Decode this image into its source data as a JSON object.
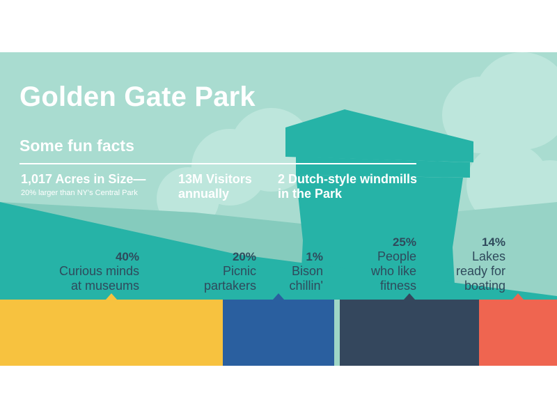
{
  "title": "Golden Gate Park",
  "subtitle": "Some fun facts",
  "facts": [
    {
      "headline": "1,017 Acres in Size—",
      "sub": "20% larger than NY's Central Park"
    },
    {
      "headline": "13M Visitors annually",
      "sub": ""
    },
    {
      "headline": "2 Dutch-style windmills in the Park",
      "sub": ""
    }
  ],
  "colors": {
    "sky": "#a9dcd0",
    "cloud": "#bde6dc",
    "hill": "#85cbbd",
    "teal": "#26b3a7",
    "text_dark": "#2f4a5c",
    "white": "#ffffff"
  },
  "chart_data": {
    "type": "bar",
    "orientation": "horizontal-stacked",
    "categories": [
      "Curious minds at museums",
      "Picnic partakers",
      "Bison chillin'",
      "People who like fitness",
      "Lakes ready for boating"
    ],
    "values": [
      40,
      20,
      1,
      25,
      14
    ],
    "value_labels": [
      "40%",
      "20%",
      "1%",
      "25%",
      "14%"
    ],
    "label_lines": [
      [
        "Curious minds",
        "at museums"
      ],
      [
        "Picnic",
        "partakers"
      ],
      [
        "Bison",
        "chillin'"
      ],
      [
        "People",
        "who like",
        "fitness"
      ],
      [
        "Lakes",
        "ready for",
        "boating"
      ]
    ],
    "colors": [
      "#f7c23f",
      "#2a5f9f",
      "#9fd6c6",
      "#34475d",
      "#ef6550"
    ],
    "unit": "%",
    "total": 100
  }
}
